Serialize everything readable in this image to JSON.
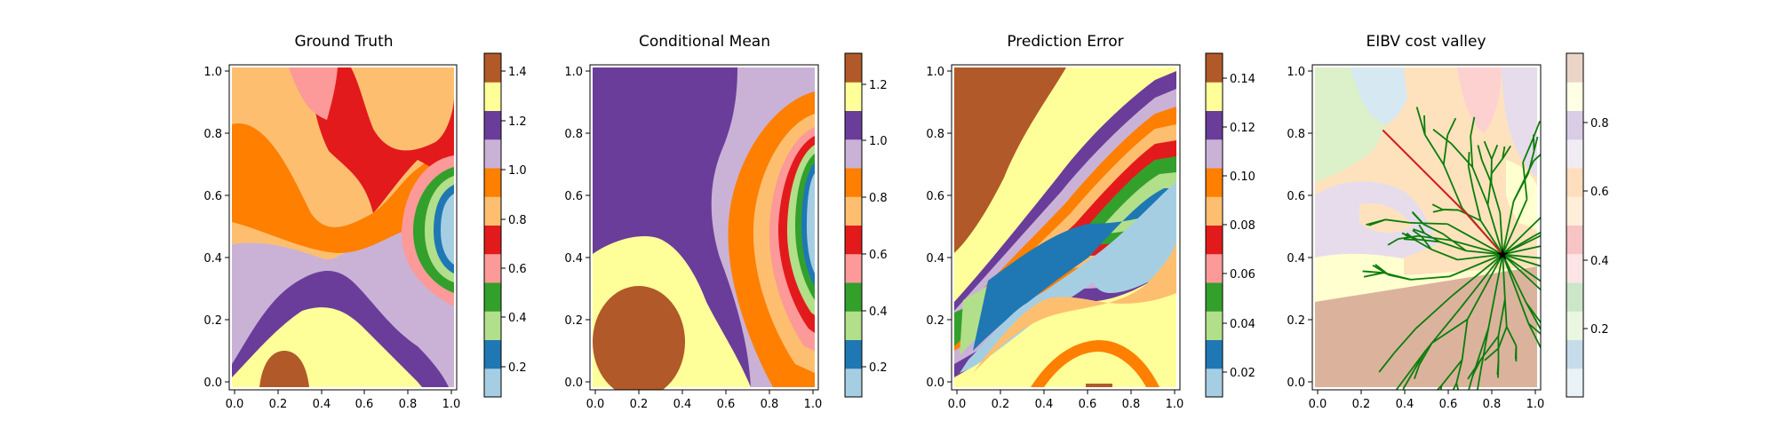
{
  "figure": {
    "panels": [
      {
        "title": "Ground Truth",
        "colorbar": {
          "ticks": [
            "0.2",
            "0.4",
            "0.6",
            "0.8",
            "1.0",
            "1.2",
            "1.4"
          ]
        }
      },
      {
        "title": "Conditional Mean",
        "colorbar": {
          "ticks": [
            "0.2",
            "0.4",
            "0.6",
            "0.8",
            "1.0",
            "1.2"
          ]
        }
      },
      {
        "title": "Prediction Error",
        "colorbar": {
          "ticks": [
            "0.02",
            "0.04",
            "0.06",
            "0.08",
            "0.10",
            "0.12",
            "0.14"
          ]
        }
      },
      {
        "title": "EIBV cost valley",
        "colorbar": {
          "ticks": [
            "0.2",
            "0.4",
            "0.6",
            "0.8"
          ]
        }
      }
    ]
  },
  "chart_data": [
    {
      "type": "heatmap",
      "title": "Ground Truth",
      "xlim": [
        0,
        1
      ],
      "ylim": [
        0,
        1
      ],
      "xticks": [
        "0.0",
        "0.2",
        "0.4",
        "0.6",
        "0.8",
        "1.0"
      ],
      "yticks": [
        "0.0",
        "0.2",
        "0.4",
        "0.6",
        "0.8",
        "1.0"
      ],
      "colormap": "Paired",
      "colorbar_range": [
        0.08,
        1.48
      ],
      "colorbar_ticks": [
        0.2,
        0.4,
        0.6,
        0.8,
        1.0,
        1.2,
        1.4
      ]
    },
    {
      "type": "heatmap",
      "title": "Conditional Mean",
      "xlim": [
        0,
        1
      ],
      "ylim": [
        0,
        1
      ],
      "xticks": [
        "0.0",
        "0.2",
        "0.4",
        "0.6",
        "0.8",
        "1.0"
      ],
      "yticks": [
        "0.0",
        "0.2",
        "0.4",
        "0.6",
        "0.8",
        "1.0"
      ],
      "colormap": "Paired",
      "colorbar_range": [
        0.09,
        1.33
      ],
      "colorbar_ticks": [
        0.2,
        0.4,
        0.6,
        0.8,
        1.0,
        1.2
      ]
    },
    {
      "type": "heatmap",
      "title": "Prediction Error",
      "xlim": [
        0,
        1
      ],
      "ylim": [
        0,
        1
      ],
      "xticks": [
        "0.0",
        "0.2",
        "0.4",
        "0.6",
        "0.8",
        "1.0"
      ],
      "yticks": [
        "0.0",
        "0.2",
        "0.4",
        "0.6",
        "0.8",
        "1.0"
      ],
      "colormap": "Paired",
      "colorbar_range": [
        0.01,
        0.15
      ],
      "colorbar_ticks": [
        0.02,
        0.04,
        0.06,
        0.08,
        0.1,
        0.12,
        0.14
      ]
    },
    {
      "type": "heatmap",
      "title": "EIBV cost valley",
      "xlim": [
        0,
        1
      ],
      "ylim": [
        0,
        1
      ],
      "xticks": [
        "0.0",
        "0.2",
        "0.4",
        "0.6",
        "0.8",
        "1.0"
      ],
      "yticks": [
        "0.0",
        "0.2",
        "0.4",
        "0.6",
        "0.8",
        "1.0"
      ],
      "colormap": "Paired (translucent)",
      "colorbar_range": [
        0.0,
        1.0
      ],
      "colorbar_ticks": [
        0.2,
        0.4,
        0.6,
        0.8
      ],
      "current_location": {
        "x": 0.85,
        "y": 0.41
      },
      "tree_color": "#0a7d0a",
      "path_color": "#cc2020"
    }
  ],
  "palette": [
    "#a6cee3",
    "#1f78b4",
    "#b2df8a",
    "#33a02c",
    "#fb9a99",
    "#e31a1c",
    "#fdbf6f",
    "#ff7f00",
    "#cab2d6",
    "#6a3d9a",
    "#ffff99",
    "#b15928"
  ]
}
